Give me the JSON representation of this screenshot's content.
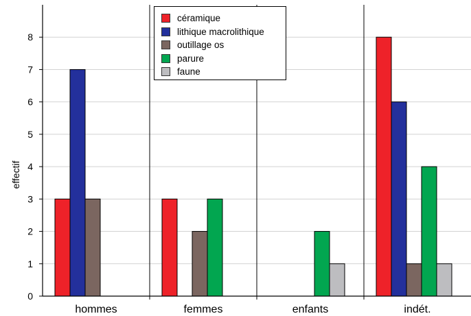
{
  "chart_data": {
    "type": "bar",
    "categories": [
      "hommes",
      "femmes",
      "enfants",
      "indét."
    ],
    "ylabel": "effectif",
    "ylim": [
      0,
      9
    ],
    "yticks": [
      0,
      1,
      2,
      3,
      4,
      5,
      6,
      7,
      8
    ],
    "grid": true,
    "legend_position": "top-center",
    "series": [
      {
        "name": "céramique",
        "color": "#ee2229",
        "values": [
          3,
          3,
          0,
          8
        ]
      },
      {
        "name": "lithique macrolithique",
        "color": "#23309c",
        "values": [
          7,
          0,
          0,
          6
        ]
      },
      {
        "name": "outillage os",
        "color": "#7b6660",
        "values": [
          3,
          2,
          0,
          1
        ]
      },
      {
        "name": "parure",
        "color": "#02a650",
        "values": [
          0,
          3,
          2,
          4
        ]
      },
      {
        "name": "faune",
        "color": "#bdbdc0",
        "values": [
          0,
          0,
          1,
          1
        ]
      }
    ]
  }
}
